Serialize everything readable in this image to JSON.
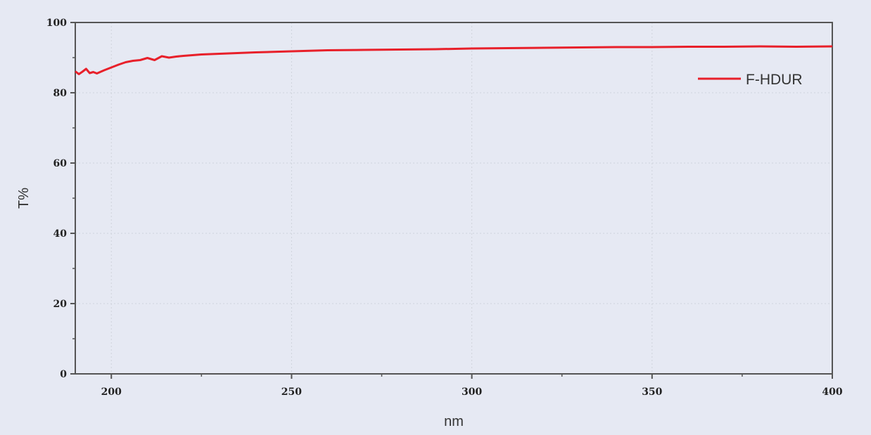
{
  "chart_data": {
    "type": "line",
    "xlabel": "nm",
    "ylabel": "T%",
    "xlim": [
      190,
      400
    ],
    "ylim": [
      0,
      100
    ],
    "xticks": [
      200,
      250,
      300,
      350,
      400
    ],
    "yticks": [
      0,
      20,
      40,
      60,
      80,
      100
    ],
    "grid": true,
    "legend_position": "top-right",
    "background": "#e6e9f3",
    "series": [
      {
        "name": "F-HDUR",
        "color": "#e8202a",
        "x": [
          190,
          191,
          192,
          193,
          194,
          195,
          196,
          198,
          200,
          202,
          204,
          206,
          208,
          210,
          212,
          214,
          216,
          218,
          220,
          225,
          230,
          235,
          240,
          250,
          260,
          270,
          280,
          290,
          300,
          310,
          320,
          330,
          340,
          350,
          360,
          370,
          380,
          390,
          400
        ],
        "y": [
          86.1,
          85.3,
          86.0,
          86.8,
          85.6,
          85.9,
          85.5,
          86.4,
          87.2,
          88.0,
          88.7,
          89.1,
          89.3,
          89.9,
          89.3,
          90.4,
          90.0,
          90.3,
          90.5,
          90.9,
          91.1,
          91.3,
          91.5,
          91.8,
          92.1,
          92.2,
          92.3,
          92.4,
          92.6,
          92.7,
          92.8,
          92.9,
          93.0,
          93.0,
          93.1,
          93.1,
          93.2,
          93.1,
          93.2
        ]
      }
    ]
  }
}
